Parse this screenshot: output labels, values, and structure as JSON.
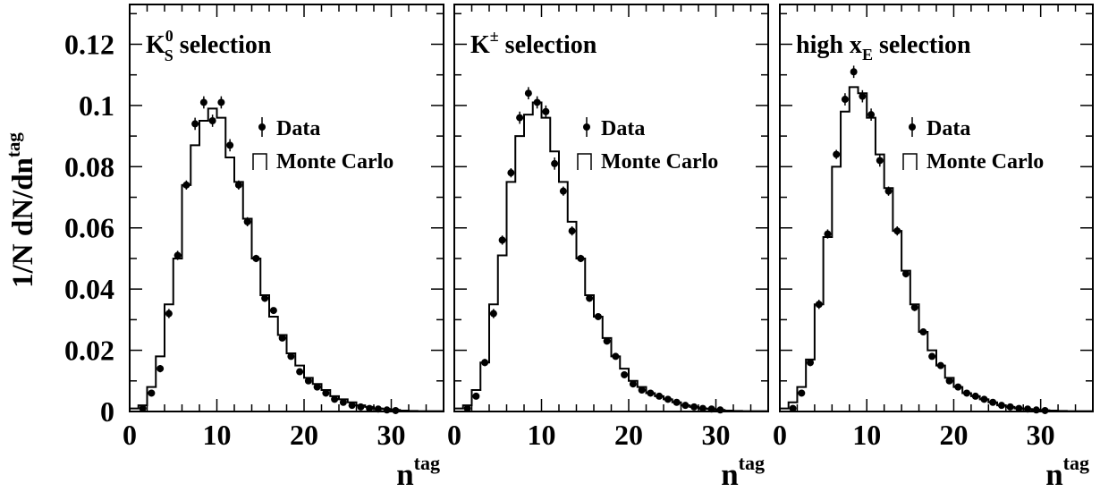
{
  "figure": {
    "ylabel": {
      "main": "1/N dN/dn",
      "sup": "tag"
    },
    "xlabel": {
      "main": "n",
      "sup": "tag"
    },
    "xlim": [
      0,
      36
    ],
    "ylim": [
      0,
      0.133
    ],
    "xticks": [
      0,
      10,
      20,
      30
    ],
    "xtick_labels": [
      "0",
      "10",
      "20",
      "30"
    ],
    "yticks": [
      0,
      0.02,
      0.04,
      0.06,
      0.08,
      0.1,
      0.12
    ],
    "ytick_labels": [
      "0",
      "0.02",
      "0.04",
      "0.06",
      "0.08",
      "0.1",
      "0.12"
    ],
    "legend": {
      "data": "Data",
      "mc": "Monte Carlo"
    }
  },
  "chart_data": [
    {
      "type": "histogram+points",
      "panel_label": {
        "pre": "K",
        "sup": "0",
        "sub": "S",
        "post": " selection"
      },
      "mc_hist": {
        "x": [
          0,
          1,
          2,
          3,
          4,
          5,
          6,
          7,
          8,
          9,
          10,
          11,
          12,
          13,
          14,
          15,
          16,
          17,
          18,
          19,
          20,
          21,
          22,
          23,
          24,
          25,
          26,
          27,
          28,
          29,
          30,
          31,
          32,
          33,
          34,
          35
        ],
        "y": [
          0.001,
          0.002,
          0.008,
          0.018,
          0.035,
          0.05,
          0.074,
          0.087,
          0.095,
          0.099,
          0.096,
          0.083,
          0.075,
          0.063,
          0.05,
          0.038,
          0.031,
          0.025,
          0.019,
          0.015,
          0.011,
          0.009,
          0.007,
          0.005,
          0.004,
          0.003,
          0.002,
          0.0015,
          0.001,
          0.0008,
          0.0005,
          0.0003,
          0.0002,
          0.0001,
          0.0001,
          0.0001
        ]
      },
      "data_points": {
        "x": [
          1,
          2,
          3,
          4,
          5,
          6,
          7,
          8,
          9,
          10,
          11,
          12,
          13,
          14,
          15,
          16,
          17,
          18,
          19,
          20,
          21,
          22,
          23,
          24,
          25,
          26,
          27,
          28,
          29,
          30
        ],
        "y": [
          0.001,
          0.006,
          0.014,
          0.032,
          0.051,
          0.074,
          0.094,
          0.101,
          0.095,
          0.101,
          0.087,
          0.074,
          0.062,
          0.05,
          0.037,
          0.033,
          0.024,
          0.018,
          0.013,
          0.01,
          0.008,
          0.006,
          0.004,
          0.003,
          0.002,
          0.0015,
          0.001,
          0.0008,
          0.0005,
          0.0003
        ],
        "err": [
          0.0005,
          0.001,
          0.0012,
          0.0015,
          0.0015,
          0.0015,
          0.002,
          0.002,
          0.002,
          0.002,
          0.002,
          0.0015,
          0.0015,
          0.0012,
          0.0012,
          0.001,
          0.001,
          0.0008,
          0.0007,
          0.0006,
          0.0005,
          0.0005,
          0.0004,
          0.0003,
          0.0003,
          0.0002,
          0.0002,
          0.0002,
          0.0001,
          0.0001
        ]
      }
    },
    {
      "type": "histogram+points",
      "panel_label": {
        "pre": "K",
        "sup": "±",
        "sub": "",
        "post": " selection"
      },
      "mc_hist": {
        "x": [
          0,
          1,
          2,
          3,
          4,
          5,
          6,
          7,
          8,
          9,
          10,
          11,
          12,
          13,
          14,
          15,
          16,
          17,
          18,
          19,
          20,
          21,
          22,
          23,
          24,
          25,
          26,
          27,
          28,
          29,
          30,
          31,
          32,
          33,
          34,
          35
        ],
        "y": [
          0.001,
          0.002,
          0.007,
          0.016,
          0.035,
          0.051,
          0.075,
          0.09,
          0.097,
          0.101,
          0.096,
          0.085,
          0.075,
          0.062,
          0.05,
          0.038,
          0.031,
          0.024,
          0.018,
          0.014,
          0.01,
          0.008,
          0.006,
          0.005,
          0.004,
          0.003,
          0.002,
          0.0015,
          0.001,
          0.0008,
          0.0005,
          0.0003,
          0.0002,
          0.0001,
          0.0001,
          0.0001
        ]
      },
      "data_points": {
        "x": [
          1,
          2,
          3,
          4,
          5,
          6,
          7,
          8,
          9,
          10,
          11,
          12,
          13,
          14,
          15,
          16,
          17,
          18,
          19,
          20,
          21,
          22,
          23,
          24,
          25,
          26,
          27,
          28,
          29,
          30
        ],
        "y": [
          0.001,
          0.005,
          0.016,
          0.032,
          0.056,
          0.078,
          0.096,
          0.104,
          0.101,
          0.098,
          0.081,
          0.072,
          0.059,
          0.05,
          0.037,
          0.031,
          0.023,
          0.018,
          0.012,
          0.009,
          0.007,
          0.006,
          0.005,
          0.004,
          0.003,
          0.002,
          0.0015,
          0.001,
          0.0008,
          0.0005
        ],
        "err": [
          0.0005,
          0.001,
          0.0012,
          0.0015,
          0.0015,
          0.0015,
          0.002,
          0.002,
          0.002,
          0.002,
          0.002,
          0.0015,
          0.0015,
          0.0012,
          0.0012,
          0.001,
          0.001,
          0.0008,
          0.0007,
          0.0006,
          0.0005,
          0.0005,
          0.0004,
          0.0003,
          0.0003,
          0.0002,
          0.0002,
          0.0002,
          0.0001,
          0.0001
        ]
      }
    },
    {
      "type": "histogram+points",
      "panel_label": {
        "pre": "high x",
        "sup": "",
        "sub": "E",
        "post": " selection"
      },
      "mc_hist": {
        "x": [
          0,
          1,
          2,
          3,
          4,
          5,
          6,
          7,
          8,
          9,
          10,
          11,
          12,
          13,
          14,
          15,
          16,
          17,
          18,
          19,
          20,
          21,
          22,
          23,
          24,
          25,
          26,
          27,
          28,
          29,
          30,
          31,
          32,
          33,
          34,
          35
        ],
        "y": [
          0.001,
          0.003,
          0.008,
          0.017,
          0.035,
          0.057,
          0.08,
          0.098,
          0.106,
          0.104,
          0.096,
          0.084,
          0.073,
          0.059,
          0.046,
          0.035,
          0.026,
          0.02,
          0.015,
          0.011,
          0.008,
          0.006,
          0.005,
          0.004,
          0.003,
          0.002,
          0.0015,
          0.001,
          0.0008,
          0.0006,
          0.0004,
          0.0003,
          0.0002,
          0.0001,
          0.0001,
          0.0001
        ]
      },
      "data_points": {
        "x": [
          1,
          2,
          3,
          4,
          5,
          6,
          7,
          8,
          9,
          10,
          11,
          12,
          13,
          14,
          15,
          16,
          17,
          18,
          19,
          20,
          21,
          22,
          23,
          24,
          25,
          26,
          27,
          28,
          29,
          30
        ],
        "y": [
          0.001,
          0.006,
          0.016,
          0.035,
          0.058,
          0.084,
          0.102,
          0.111,
          0.103,
          0.097,
          0.082,
          0.072,
          0.059,
          0.045,
          0.034,
          0.026,
          0.018,
          0.015,
          0.01,
          0.008,
          0.006,
          0.005,
          0.004,
          0.003,
          0.002,
          0.0015,
          0.001,
          0.0008,
          0.0005,
          0.0003
        ],
        "err": [
          0.0005,
          0.001,
          0.0012,
          0.0015,
          0.0015,
          0.0015,
          0.002,
          0.002,
          0.002,
          0.002,
          0.002,
          0.0015,
          0.0015,
          0.0012,
          0.0012,
          0.001,
          0.001,
          0.0008,
          0.0007,
          0.0006,
          0.0005,
          0.0005,
          0.0004,
          0.0003,
          0.0003,
          0.0002,
          0.0002,
          0.0002,
          0.0001,
          0.0001
        ]
      }
    }
  ]
}
